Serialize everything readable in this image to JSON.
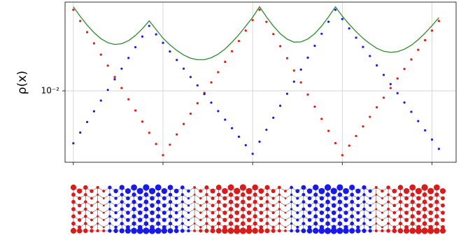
{
  "chart_data": {
    "type": "scatter",
    "ylabel": "ρ(x)",
    "yscale": "log",
    "grid": true,
    "x": [
      0,
      1,
      2,
      3,
      4,
      5,
      6,
      7,
      8,
      9,
      10,
      11,
      12,
      13,
      14,
      15,
      16,
      17,
      18,
      19,
      20,
      21,
      22,
      23,
      24,
      25,
      26,
      27,
      28,
      29,
      30,
      31,
      32,
      33,
      34,
      35,
      36,
      37,
      38,
      39,
      40,
      41,
      42,
      43,
      44,
      45,
      46,
      47,
      48,
      49,
      50,
      51,
      52,
      53
    ],
    "xlim": [
      -1.2,
      55.5
    ],
    "xticks": [
      0,
      13,
      26,
      39,
      52
    ],
    "ylim": [
      0.0023,
      0.0622
    ],
    "yticks": [
      {
        "value": 0.01,
        "label": "10⁻²"
      }
    ],
    "series": [
      {
        "color": "#e8190c",
        "mode": "markers",
        "values": [
          0.0531,
          0.0422,
          0.0335,
          0.0266,
          0.0211,
          0.0168,
          0.0133,
          0.0106,
          0.00841,
          0.00668,
          0.00531,
          0.00422,
          0.00335,
          0.00266,
          0.0033,
          0.00408,
          0.00506,
          0.00625,
          0.00775,
          0.00959,
          0.0119,
          0.0147,
          0.0182,
          0.0226,
          0.0279,
          0.0346,
          0.0429,
          0.0531,
          0.0414,
          0.0322,
          0.0251,
          0.0196,
          0.0152,
          0.0119,
          0.00927,
          0.00722,
          0.00562,
          0.00439,
          0.00341,
          0.00266,
          0.00324,
          0.00395,
          0.00481,
          0.00586,
          0.00714,
          0.00869,
          0.0106,
          0.0129,
          0.0157,
          0.0191,
          0.0233,
          0.0284,
          0.0346,
          0.0422
        ]
      },
      {
        "color": "#1a1ae6",
        "mode": "markers",
        "values": [
          0.0034,
          0.00424,
          0.00527,
          0.00657,
          0.00819,
          0.0102,
          0.0127,
          0.0158,
          0.0197,
          0.0246,
          0.0306,
          0.0381,
          0.032,
          0.0269,
          0.0225,
          0.0189,
          0.0158,
          0.0133,
          0.0112,
          0.00936,
          0.00785,
          0.00659,
          0.00553,
          0.00464,
          0.00389,
          0.00327,
          0.00274,
          0.00351,
          0.00449,
          0.00575,
          0.00736,
          0.00942,
          0.0121,
          0.0155,
          0.0198,
          0.0253,
          0.0324,
          0.0415,
          0.0531,
          0.0439,
          0.0362,
          0.0299,
          0.0247,
          0.0205,
          0.0169,
          0.0139,
          0.0115,
          0.00953,
          0.00787,
          0.0065,
          0.00537,
          0.00444,
          0.00367,
          0.00303
        ]
      },
      {
        "color": "#2e8b2e",
        "mode": "line",
        "values": [
          0.0565,
          0.0464,
          0.0388,
          0.0332,
          0.0293,
          0.027,
          0.026,
          0.0264,
          0.0281,
          0.0313,
          0.0359,
          0.0423,
          0.0354,
          0.0296,
          0.0258,
          0.023,
          0.0209,
          0.0196,
          0.019,
          0.019,
          0.0198,
          0.0213,
          0.0237,
          0.0272,
          0.0318,
          0.0379,
          0.0456,
          0.0566,
          0.0459,
          0.038,
          0.0325,
          0.029,
          0.0273,
          0.0274,
          0.0291,
          0.0325,
          0.038,
          0.0459,
          0.0565,
          0.0466,
          0.0394,
          0.0339,
          0.0295,
          0.0264,
          0.024,
          0.0226,
          0.0221,
          0.0224,
          0.0236,
          0.0256,
          0.0287,
          0.0328,
          0.0383,
          0.0452
        ]
      }
    ]
  }
}
